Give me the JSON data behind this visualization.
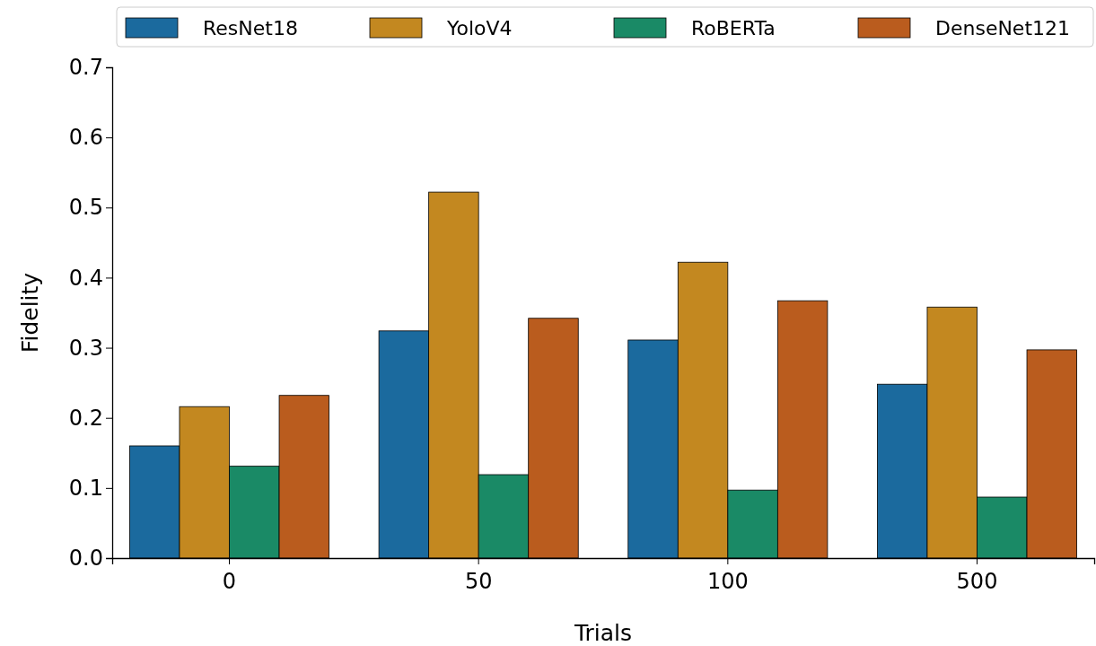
{
  "chart_data": {
    "type": "bar",
    "xlabel": "Trials",
    "ylabel": "Fidelity",
    "categories": [
      "0",
      "50",
      "100",
      "500"
    ],
    "series": [
      {
        "name": "ResNet18",
        "color": "#1b6a9e",
        "values": [
          0.16,
          0.324,
          0.311,
          0.248
        ]
      },
      {
        "name": "YoloV4",
        "color": "#c38820",
        "values": [
          0.216,
          0.522,
          0.422,
          0.358
        ]
      },
      {
        "name": "RoBERTa",
        "color": "#1a8a66",
        "values": [
          0.131,
          0.119,
          0.097,
          0.087
        ]
      },
      {
        "name": "DenseNet121",
        "color": "#ba5c1e",
        "values": [
          0.232,
          0.342,
          0.367,
          0.297
        ]
      }
    ],
    "ylim": [
      0,
      0.7
    ],
    "yticks": [
      {
        "value": 0,
        "label": "0.0"
      },
      0.1,
      0.2,
      0.3,
      0.4,
      0.5,
      0.6,
      0.7
    ],
    "legend": "top",
    "grid": false
  }
}
